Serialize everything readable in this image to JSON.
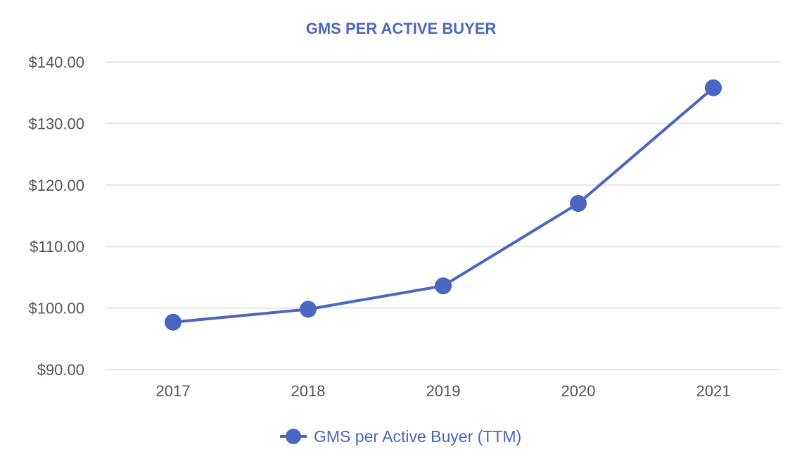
{
  "chart_data": {
    "type": "line",
    "title": "GMS PER ACTIVE BUYER",
    "xlabel": "",
    "ylabel": "",
    "categories": [
      "2017",
      "2018",
      "2019",
      "2020",
      "2021"
    ],
    "series": [
      {
        "name": "GMS per Active Buyer (TTM)",
        "values": [
          97.7,
          99.8,
          103.6,
          117.0,
          135.8
        ],
        "color": "#4a66c0"
      }
    ],
    "ylim": [
      90,
      140
    ],
    "yticks": [
      90,
      100,
      110,
      120,
      130,
      140
    ],
    "ytick_labels": [
      "$90.00",
      "$100.00",
      "$110.00",
      "$120.00",
      "$130.00",
      "$140.00"
    ],
    "grid": true,
    "legend_position": "bottom-center"
  }
}
